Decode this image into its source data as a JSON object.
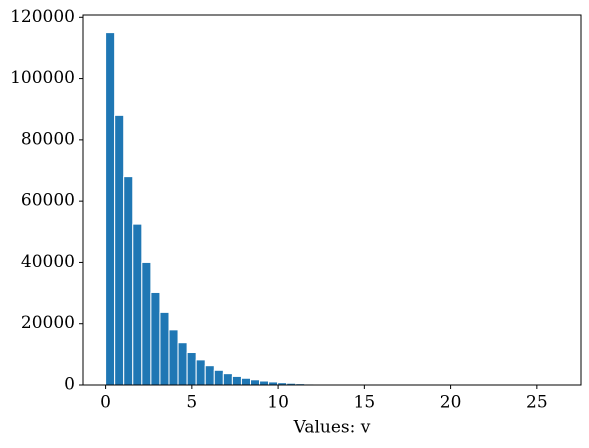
{
  "chart_data": {
    "type": "histogram",
    "xlabel": "Values: v",
    "bins": [
      0,
      0.525,
      1.05,
      1.575,
      2.1,
      2.625,
      3.15,
      3.675,
      4.2,
      4.725,
      5.25,
      5.775,
      6.3,
      6.825,
      7.35,
      7.875,
      8.4,
      8.925,
      9.45,
      9.975,
      10.5,
      11.025,
      11.55,
      12.075,
      12.6,
      13.125,
      13.65,
      14.175,
      14.7,
      15.225,
      15.75,
      16.275,
      16.8,
      17.325,
      17.85,
      18.375,
      18.9,
      19.425,
      19.95,
      20.475,
      21,
      21.525,
      22.05,
      22.575,
      23.1,
      23.625,
      24.15,
      24.675,
      25.2,
      25.725,
      26.25
    ],
    "counts": [
      115000,
      88000,
      68000,
      52500,
      40000,
      30200,
      23700,
      18000,
      13800,
      10600,
      8200,
      6300,
      4800,
      3700,
      2800,
      2200,
      1700,
      1300,
      1000,
      750,
      580,
      440,
      340,
      260,
      200,
      150,
      115,
      90,
      70,
      50,
      40,
      30,
      23,
      18,
      14,
      10,
      8,
      6,
      5,
      4,
      3,
      2,
      2,
      1,
      1,
      1,
      0,
      0,
      0,
      1
    ],
    "color": "#1f77b4",
    "xlim": [
      -1.31,
      27.56
    ],
    "xticks": [
      0,
      5,
      10,
      15,
      20,
      25
    ],
    "ylim": [
      0,
      120750
    ],
    "yticks": [
      0,
      20000,
      40000,
      60000,
      80000,
      100000,
      120000
    ]
  }
}
